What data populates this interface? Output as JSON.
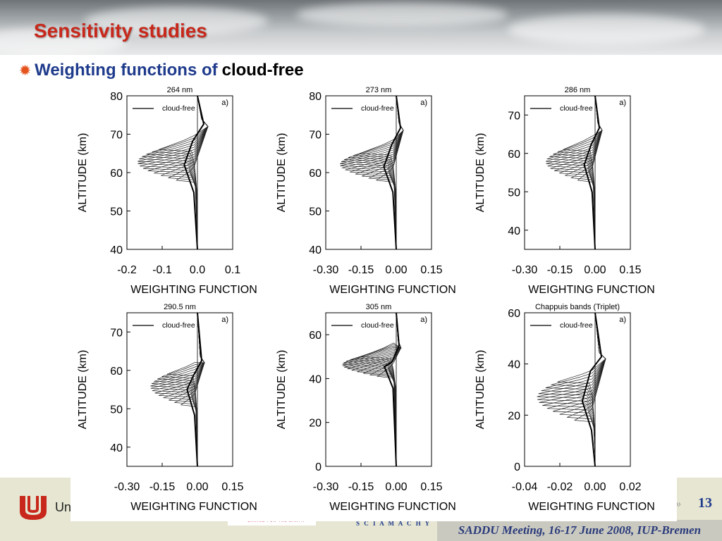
{
  "slide": {
    "title": "Sensitivity studies",
    "bullet_lead": "Weighting functions of",
    "bullet_tail": "cloud-free",
    "bullet_icon": "sun-icon"
  },
  "footer": {
    "university": "Un",
    "instrument": "S C I A M A C H Y",
    "meeting": "SADDU Meeting, 16-17 June 2008, IUP-Bremen",
    "page_number": "13",
    "partner_tagline": "CARING FOR THE EARTH"
  },
  "colors": {
    "title": "#c8281b",
    "bullet_lead": "#1f3b8c",
    "footer_band": "#e6e6d2"
  },
  "chart_data": [
    {
      "type": "line",
      "title": "264 nm",
      "panel_tag": "a)",
      "legend": "cloud-free",
      "xlabel": "WEIGHTING FUNCTION",
      "ylabel": "ALTITUDE (km)",
      "xlim": [
        -0.2,
        0.1
      ],
      "ylim": [
        40,
        80
      ],
      "xticks": [
        "-0.2",
        "-0.1",
        "0.0",
        "0.1"
      ],
      "xtick_values": [
        -0.2,
        -0.1,
        0.0,
        0.1
      ],
      "yticks": [
        "40",
        "50",
        "60",
        "70",
        "80"
      ],
      "ytick_values": [
        40,
        50,
        60,
        70,
        80
      ],
      "profile": {
        "top": 80,
        "bottom": 40,
        "peak_alt": 72,
        "peak_wf": 0.03,
        "min_wf": -0.17,
        "min_alt_top": 66,
        "min_alt_bottom": 58,
        "n_curves": 14,
        "surface_alt": 40
      }
    },
    {
      "type": "line",
      "title": "273 nm",
      "panel_tag": "a)",
      "legend": "cloud-free",
      "xlabel": "WEIGHTING FUNCTION",
      "ylabel": "ALTITUDE (km)",
      "xlim": [
        -0.3,
        0.15
      ],
      "ylim": [
        40,
        80
      ],
      "xticks": [
        "-0.30",
        "-0.15",
        "0.00",
        "0.15"
      ],
      "xtick_values": [
        -0.3,
        -0.15,
        0.0,
        0.15
      ],
      "yticks": [
        "40",
        "50",
        "60",
        "70",
        "80"
      ],
      "ytick_values": [
        40,
        50,
        60,
        70,
        80
      ],
      "profile": {
        "top": 80,
        "bottom": 40,
        "peak_alt": 71,
        "peak_wf": 0.03,
        "min_wf": -0.24,
        "min_alt_top": 65,
        "min_alt_bottom": 58,
        "n_curves": 14,
        "surface_alt": 40
      }
    },
    {
      "type": "line",
      "title": "286 nm",
      "panel_tag": "a)",
      "legend": "cloud-free",
      "xlabel": "WEIGHTING FUNCTION",
      "ylabel": "ALTITUDE (km)",
      "xlim": [
        -0.3,
        0.15
      ],
      "ylim": [
        35,
        75
      ],
      "xticks": [
        "-0.30",
        "-0.15",
        "0.00",
        "0.15"
      ],
      "xtick_values": [
        -0.3,
        -0.15,
        0.0,
        0.15
      ],
      "yticks": [
        "40",
        "50",
        "60",
        "70"
      ],
      "ytick_values": [
        40,
        50,
        60,
        70
      ],
      "profile": {
        "top": 75,
        "bottom": 35,
        "peak_alt": 66,
        "peak_wf": 0.03,
        "min_wf": -0.21,
        "min_alt_top": 61,
        "min_alt_bottom": 53,
        "n_curves": 14,
        "surface_alt": 35
      }
    },
    {
      "type": "line",
      "title": "290.5 nm",
      "panel_tag": "a)",
      "legend": "cloud-free",
      "xlabel": "WEIGHTING FUNCTION",
      "ylabel": "ALTITUDE (km)",
      "xlim": [
        -0.3,
        0.15
      ],
      "ylim": [
        35,
        75
      ],
      "xticks": [
        "-0.30",
        "-0.15",
        "0.00",
        "0.15"
      ],
      "xtick_values": [
        -0.3,
        -0.15,
        0.0,
        0.15
      ],
      "yticks": [
        "40",
        "50",
        "60",
        "70"
      ],
      "ytick_values": [
        40,
        50,
        60,
        70
      ],
      "profile": {
        "top": 75,
        "bottom": 35,
        "peak_alt": 62,
        "peak_wf": 0.03,
        "min_wf": -0.2,
        "min_alt_top": 59,
        "min_alt_bottom": 51,
        "n_curves": 14,
        "surface_alt": 35
      }
    },
    {
      "type": "line",
      "title": "305 nm",
      "panel_tag": "a)",
      "legend": "cloud-free",
      "xlabel": "WEIGHTING FUNCTION",
      "ylabel": "ALTITUDE (km)",
      "xlim": [
        -0.3,
        0.15
      ],
      "ylim": [
        0,
        70
      ],
      "xticks": [
        "-0.30",
        "-0.15",
        "0.00",
        "0.15"
      ],
      "xtick_values": [
        -0.3,
        -0.15,
        0.0,
        0.15
      ],
      "yticks": [
        "0",
        "20",
        "40",
        "60"
      ],
      "ytick_values": [
        0,
        20,
        40,
        60
      ],
      "profile": {
        "top": 70,
        "bottom": 0,
        "peak_alt": 54,
        "peak_wf": 0.02,
        "min_wf": -0.23,
        "min_alt_top": 50,
        "min_alt_bottom": 41,
        "n_curves": 14,
        "surface_alt": 0
      }
    },
    {
      "type": "line",
      "title": "Chappuis bands (Triplet)",
      "panel_tag": "a)",
      "legend": "cloud-free",
      "xlabel": "WEIGHTING FUNCTION",
      "ylabel": "ALTITUDE (km)",
      "xlim": [
        -0.04,
        0.02
      ],
      "ylim": [
        0,
        60
      ],
      "xticks": [
        "-0.04",
        "-0.02",
        "0.00",
        "0.02"
      ],
      "xtick_values": [
        -0.04,
        -0.02,
        0.0,
        0.02
      ],
      "yticks": [
        "0",
        "20",
        "40",
        "60"
      ],
      "ytick_values": [
        0,
        20,
        40,
        60
      ],
      "profile": {
        "top": 60,
        "bottom": 0,
        "peak_alt": 42,
        "peak_wf": 0.006,
        "min_wf": -0.033,
        "min_alt_top": 33,
        "min_alt_bottom": 18,
        "n_curves": 14,
        "surface_alt": 2
      }
    }
  ]
}
